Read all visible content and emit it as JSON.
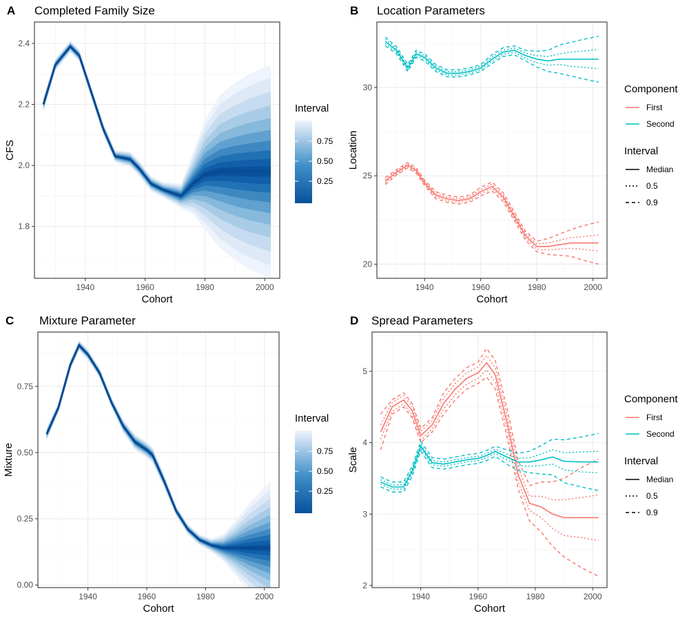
{
  "chart_data": [
    {
      "panel": "A",
      "type": "area",
      "title": "Completed Family Size",
      "xlabel": "Cohort",
      "ylabel": "CFS",
      "xlim": [
        1923,
        2005
      ],
      "ylim": [
        1.63,
        2.47
      ],
      "xticks": [
        1940,
        1960,
        1980,
        2000
      ],
      "yticks": [
        1.8,
        2.0,
        2.2,
        2.4
      ],
      "ytick_labels": [
        "1.8",
        "2.0",
        "2.2",
        "2.4"
      ],
      "legend": {
        "title": "Interval",
        "breaks": [
          "0.75",
          "0.50",
          "0.25"
        ],
        "colors": [
          "#eef3fc",
          "#08519c"
        ]
      },
      "x": [
        1926,
        1930,
        1935,
        1938,
        1942,
        1946,
        1950,
        1955,
        1958,
        1962,
        1966,
        1972,
        1976,
        1980,
        1985,
        1990,
        1995,
        2002
      ],
      "median": [
        2.2,
        2.33,
        2.39,
        2.36,
        2.24,
        2.12,
        2.03,
        2.02,
        1.99,
        1.94,
        1.92,
        1.9,
        1.94,
        1.97,
        1.98,
        1.98,
        1.98,
        1.98
      ],
      "halfwidth_95": [
        0.025,
        0.02,
        0.02,
        0.02,
        0.02,
        0.02,
        0.02,
        0.025,
        0.025,
        0.025,
        0.025,
        0.04,
        0.1,
        0.18,
        0.25,
        0.29,
        0.32,
        0.35
      ]
    },
    {
      "panel": "B",
      "type": "line",
      "title": "Location Parameters",
      "xlabel": "Cohort",
      "ylabel": "Location",
      "xlim": [
        1923,
        2005
      ],
      "ylim": [
        19.2,
        33.7
      ],
      "xticks": [
        1940,
        1960,
        1980,
        2000
      ],
      "yticks": [
        20,
        25,
        30
      ],
      "ytick_labels": [
        "20",
        "25",
        "30"
      ],
      "x": [
        1926,
        1930,
        1934,
        1937,
        1940,
        1944,
        1948,
        1952,
        1956,
        1960,
        1964,
        1968,
        1972,
        1976,
        1980,
        1984,
        1988,
        1992,
        1996,
        2002
      ],
      "series": [
        {
          "name": "First",
          "color": "#f8766d",
          "median": [
            24.7,
            25.2,
            25.6,
            25.3,
            24.6,
            23.9,
            23.7,
            23.6,
            23.7,
            24.1,
            24.4,
            23.8,
            22.7,
            21.6,
            21.0,
            21.0,
            21.1,
            21.2,
            21.2,
            21.2
          ],
          "hw50": [
            0.1,
            0.08,
            0.08,
            0.08,
            0.08,
            0.1,
            0.1,
            0.1,
            0.1,
            0.12,
            0.12,
            0.12,
            0.12,
            0.12,
            0.15,
            0.2,
            0.25,
            0.3,
            0.35,
            0.45
          ],
          "hw90": [
            0.2,
            0.15,
            0.15,
            0.15,
            0.15,
            0.2,
            0.2,
            0.2,
            0.2,
            0.25,
            0.25,
            0.25,
            0.25,
            0.25,
            0.3,
            0.45,
            0.6,
            0.75,
            0.95,
            1.2
          ]
        },
        {
          "name": "Second",
          "color": "#00bfc4",
          "median": [
            32.6,
            32.1,
            31.1,
            31.9,
            31.7,
            31.1,
            30.8,
            30.8,
            30.9,
            31.1,
            31.6,
            32.0,
            32.1,
            31.8,
            31.6,
            31.5,
            31.6,
            31.6,
            31.6,
            31.6
          ],
          "hw50": [
            0.12,
            0.1,
            0.1,
            0.1,
            0.1,
            0.1,
            0.1,
            0.1,
            0.1,
            0.1,
            0.12,
            0.12,
            0.12,
            0.15,
            0.2,
            0.25,
            0.3,
            0.4,
            0.45,
            0.55
          ],
          "hw90": [
            0.25,
            0.2,
            0.2,
            0.2,
            0.2,
            0.2,
            0.2,
            0.2,
            0.2,
            0.2,
            0.25,
            0.25,
            0.25,
            0.3,
            0.45,
            0.6,
            0.8,
            0.95,
            1.1,
            1.3
          ]
        }
      ],
      "legend": [
        {
          "title": "Component",
          "items": [
            {
              "label": "First",
              "color": "#f8766d"
            },
            {
              "label": "Second",
              "color": "#00bfc4"
            }
          ]
        },
        {
          "title": "Interval",
          "items": [
            {
              "label": "Median",
              "dash": "solid"
            },
            {
              "label": "0.5",
              "dash": "dotted"
            },
            {
              "label": "0.9",
              "dash": "dashed"
            }
          ]
        }
      ]
    },
    {
      "panel": "C",
      "type": "area",
      "title": "Mixture Parameter",
      "xlabel": "Cohort",
      "ylabel": "Mixture",
      "xlim": [
        1923,
        2005
      ],
      "ylim": [
        -0.01,
        0.955
      ],
      "xticks": [
        1940,
        1960,
        1980,
        2000
      ],
      "yticks": [
        0.0,
        0.25,
        0.5,
        0.75
      ],
      "ytick_labels": [
        "0.00",
        "0.25",
        "0.50",
        "0.75"
      ],
      "legend": {
        "title": "Interval",
        "breaks": [
          "0.75",
          "0.50",
          "0.25"
        ],
        "colors": [
          "#eef3fc",
          "#08519c"
        ]
      },
      "x": [
        1926,
        1930,
        1934,
        1937,
        1940,
        1944,
        1948,
        1952,
        1956,
        1960,
        1962,
        1966,
        1970,
        1974,
        1978,
        1982,
        1986,
        1990,
        1995,
        2002
      ],
      "median": [
        0.57,
        0.67,
        0.83,
        0.905,
        0.87,
        0.8,
        0.69,
        0.6,
        0.54,
        0.51,
        0.49,
        0.39,
        0.28,
        0.21,
        0.17,
        0.15,
        0.14,
        0.14,
        0.14,
        0.14
      ],
      "halfwidth_95": [
        0.025,
        0.02,
        0.02,
        0.02,
        0.02,
        0.02,
        0.02,
        0.025,
        0.03,
        0.03,
        0.03,
        0.025,
        0.02,
        0.02,
        0.02,
        0.025,
        0.05,
        0.1,
        0.17,
        0.25
      ]
    },
    {
      "panel": "D",
      "type": "line",
      "title": "Spread Parameters",
      "xlabel": "Cohort",
      "ylabel": "Scale",
      "xlim": [
        1923,
        2005
      ],
      "ylim": [
        1.97,
        5.55
      ],
      "xticks": [
        1940,
        1960,
        1980,
        2000
      ],
      "yticks": [
        2,
        3,
        4,
        5
      ],
      "ytick_labels": [
        "2",
        "3",
        "4",
        "5"
      ],
      "x": [
        1926,
        1930,
        1934,
        1937,
        1940,
        1944,
        1948,
        1952,
        1956,
        1960,
        1963,
        1966,
        1970,
        1974,
        1978,
        1982,
        1986,
        1990,
        1996,
        2002
      ],
      "series": [
        {
          "name": "First",
          "color": "#f8766d",
          "median": [
            4.15,
            4.5,
            4.6,
            4.45,
            4.1,
            4.25,
            4.55,
            4.75,
            4.9,
            4.98,
            5.12,
            4.95,
            4.3,
            3.55,
            3.15,
            3.1,
            3.0,
            2.95,
            2.95,
            2.95
          ],
          "hw50": [
            0.1,
            0.06,
            0.06,
            0.06,
            0.06,
            0.06,
            0.08,
            0.08,
            0.08,
            0.08,
            0.1,
            0.1,
            0.1,
            0.1,
            0.1,
            0.15,
            0.2,
            0.25,
            0.28,
            0.32
          ],
          "hw90": [
            0.25,
            0.1,
            0.1,
            0.1,
            0.1,
            0.1,
            0.15,
            0.15,
            0.15,
            0.15,
            0.2,
            0.2,
            0.2,
            0.2,
            0.25,
            0.35,
            0.45,
            0.55,
            0.7,
            0.82
          ]
        },
        {
          "name": "Second",
          "color": "#00bfc4",
          "median": [
            3.45,
            3.38,
            3.38,
            3.6,
            3.95,
            3.72,
            3.7,
            3.73,
            3.76,
            3.78,
            3.82,
            3.88,
            3.8,
            3.73,
            3.73,
            3.76,
            3.8,
            3.74,
            3.73,
            3.73
          ],
          "hw50": [
            0.03,
            0.03,
            0.03,
            0.03,
            0.03,
            0.03,
            0.03,
            0.03,
            0.03,
            0.03,
            0.03,
            0.03,
            0.04,
            0.05,
            0.06,
            0.08,
            0.1,
            0.12,
            0.14,
            0.15
          ],
          "hw90": [
            0.07,
            0.07,
            0.07,
            0.07,
            0.07,
            0.07,
            0.07,
            0.07,
            0.07,
            0.07,
            0.07,
            0.07,
            0.1,
            0.12,
            0.15,
            0.2,
            0.25,
            0.3,
            0.35,
            0.4
          ]
        }
      ],
      "legend": [
        {
          "title": "Component",
          "items": [
            {
              "label": "First",
              "color": "#f8766d"
            },
            {
              "label": "Second",
              "color": "#00bfc4"
            }
          ]
        },
        {
          "title": "Interval",
          "items": [
            {
              "label": "Median",
              "dash": "solid"
            },
            {
              "label": "0.5",
              "dash": "dotted"
            },
            {
              "label": "0.9",
              "dash": "dashed"
            }
          ]
        }
      ]
    }
  ]
}
